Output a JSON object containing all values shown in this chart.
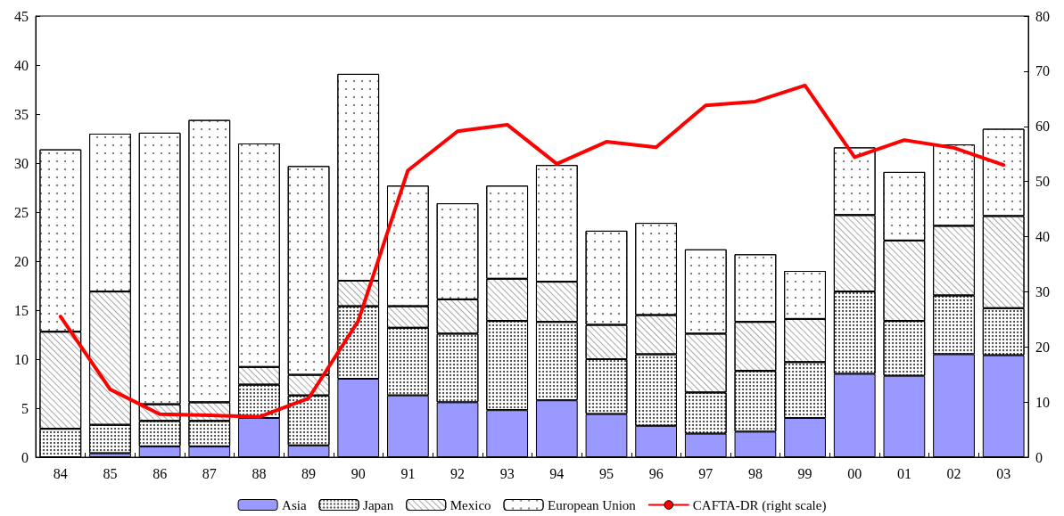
{
  "chart_data": {
    "type": "bar",
    "stacked": true,
    "categories": [
      "84",
      "85",
      "86",
      "87",
      "88",
      "89",
      "90",
      "91",
      "92",
      "93",
      "94",
      "95",
      "96",
      "97",
      "98",
      "99",
      "00",
      "01",
      "02",
      "03"
    ],
    "series": [
      {
        "name": "Asia",
        "color": "#9999ff",
        "values": [
          null,
          0.4,
          1.1,
          1.1,
          4.0,
          1.2,
          8.0,
          6.3,
          5.6,
          4.8,
          5.8,
          4.4,
          3.2,
          2.4,
          2.6,
          4.0,
          8.5,
          8.3,
          10.5,
          10.4
        ]
      },
      {
        "name": "Japan",
        "color": "#ffffff",
        "values": [
          2.9,
          2.9,
          2.6,
          2.6,
          3.4,
          5.1,
          7.4,
          6.9,
          7.0,
          9.1,
          8.0,
          5.6,
          7.3,
          4.2,
          6.2,
          5.7,
          8.4,
          5.6,
          6.0,
          4.8
        ]
      },
      {
        "name": "Mexico",
        "color": "#ffffff",
        "values": [
          9.9,
          13.6,
          1.7,
          1.9,
          1.8,
          2.1,
          2.6,
          2.2,
          3.5,
          4.3,
          4.1,
          3.5,
          4.0,
          6.0,
          5.0,
          4.4,
          7.8,
          8.2,
          7.1,
          9.4
        ]
      },
      {
        "name": "European Union",
        "color": "#ffffff",
        "values": [
          18.6,
          16.1,
          27.7,
          28.8,
          22.8,
          21.3,
          21.1,
          12.3,
          9.8,
          9.5,
          11.9,
          9.6,
          9.4,
          8.6,
          6.9,
          4.9,
          6.9,
          7.0,
          8.3,
          8.9
        ]
      },
      {
        "name": "CAFTA-DR (right scale)",
        "type": "line",
        "axis": "y2",
        "color": "#ff0000",
        "values": [
          25.5,
          12.3,
          7.8,
          7.6,
          7.3,
          10.7,
          24.7,
          52.0,
          59.1,
          60.3,
          53.2,
          57.2,
          56.2,
          63.8,
          64.5,
          67.4,
          54.4,
          57.5,
          56.1,
          53.0
        ]
      }
    ],
    "ylim": [
      0,
      45
    ],
    "yticks": [
      0,
      5,
      10,
      15,
      20,
      25,
      30,
      35,
      40,
      45
    ],
    "y2lim": [
      0,
      80
    ],
    "y2ticks": [
      0,
      10,
      20,
      30,
      40,
      50,
      60,
      70,
      80
    ],
    "grid": false,
    "legend": "bottom",
    "marker": "none",
    "line_style": "solid"
  }
}
